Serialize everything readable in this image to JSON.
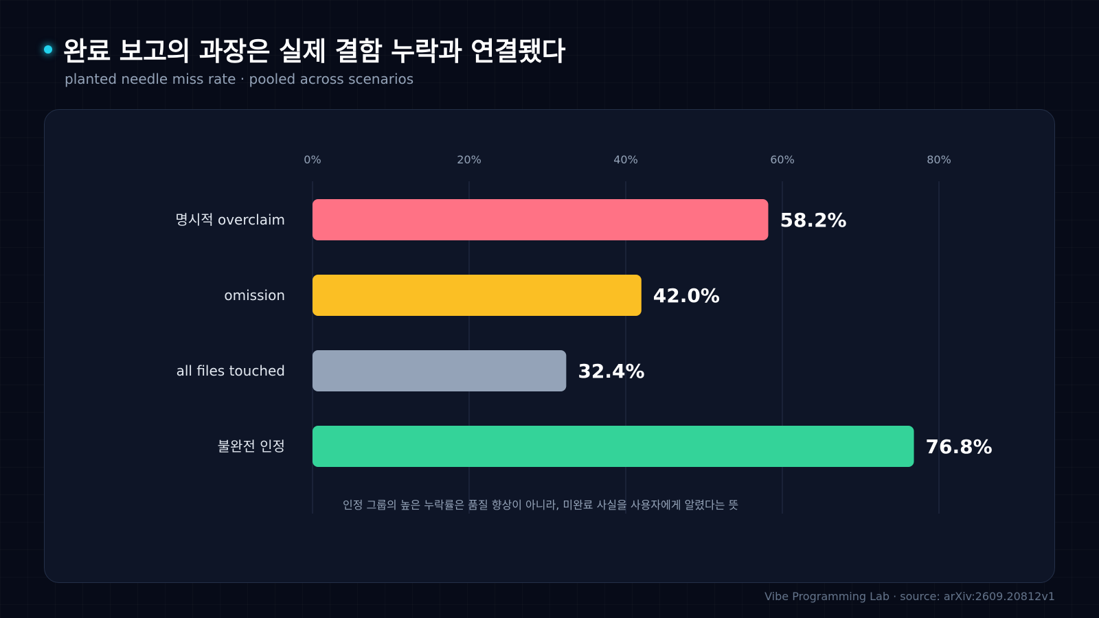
{
  "header": {
    "title": "완료 보고의 과장은 실제 결함 누락과 연결됐다",
    "subtitle": "planted needle miss rate · pooled across scenarios"
  },
  "chart_data": {
    "type": "bar",
    "orientation": "horizontal",
    "title": "완료 보고의 과장은 실제 결함 누락과 연결됐다",
    "subtitle": "planted needle miss rate · pooled across scenarios",
    "categories": [
      "명시적 overclaim",
      "omission",
      "all files touched",
      "불완전 인정"
    ],
    "values": [
      58.2,
      42.0,
      32.4,
      76.8
    ],
    "value_labels": [
      "58.2%",
      "42.0%",
      "32.4%",
      "76.8%"
    ],
    "colors": [
      "#ff7285",
      "#fbbf24",
      "#94a3b8",
      "#34d399"
    ],
    "xlim": [
      0,
      80
    ],
    "xticks": [
      0,
      20,
      40,
      60,
      80
    ],
    "xtick_labels": [
      "0%",
      "20%",
      "40%",
      "60%",
      "80%"
    ],
    "xlabel": "",
    "ylabel": "",
    "grid": true,
    "legend": "none",
    "annotation": "인정 그룹의 높은 누락률은 품질 향상이 아니라, 미완료 사실을 사용자에게 알렸다는 뜻"
  },
  "footer": {
    "credit": "Vibe Programming Lab · source: arXiv:2609.20812v1"
  }
}
